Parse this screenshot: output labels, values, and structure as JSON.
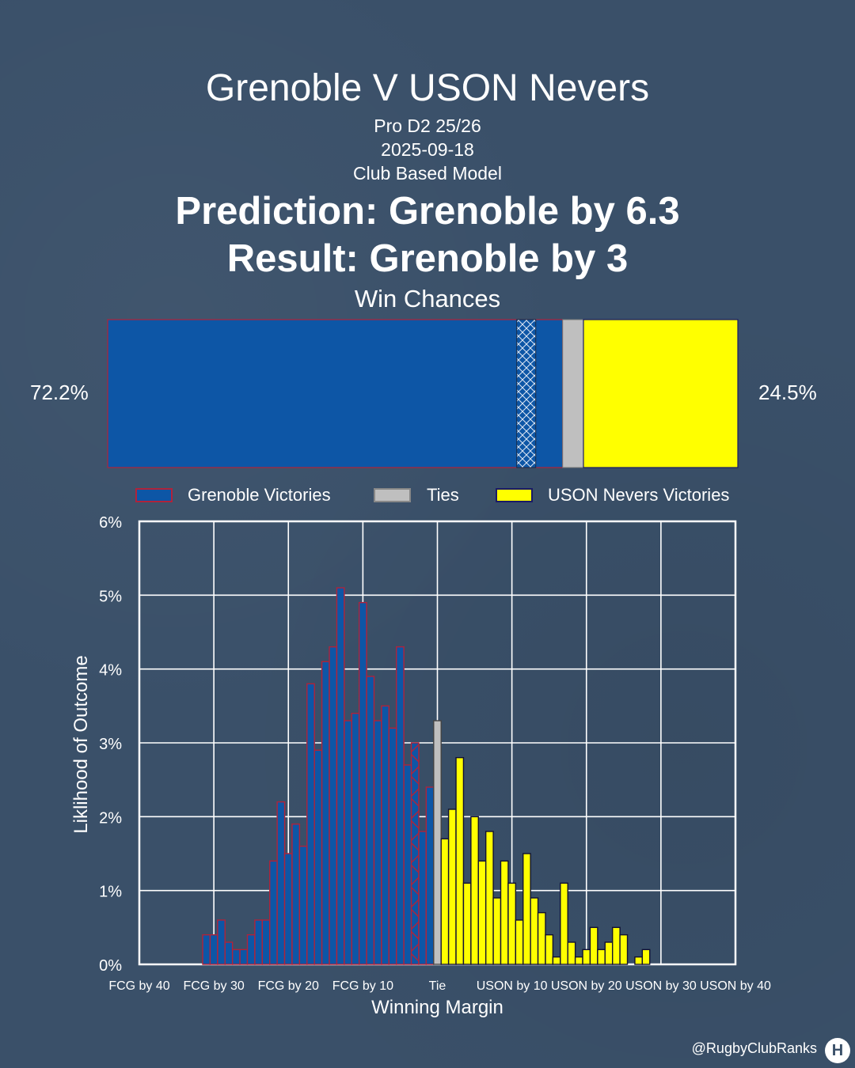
{
  "header": {
    "title": "Grenoble V USON Nevers",
    "competition": "Pro D2 25/26",
    "date": "2025-09-18",
    "model": "Club Based Model",
    "prediction": "Prediction: Grenoble by 6.3",
    "result": "Result: Grenoble by 3",
    "win_chances_label": "Win Chances"
  },
  "win_chances": {
    "home_pct_label": "72.2%",
    "away_pct_label": "24.5%",
    "home_share": 72.2,
    "tie_share": 3.3,
    "away_share": 24.5,
    "result_band_margin": 3,
    "colors": {
      "home": "#0d56a6",
      "home_edge": "#b0233a",
      "tie": "#bfbfbf",
      "away": "#ffff00",
      "away_edge": "#1a1a66"
    }
  },
  "legend": {
    "items": [
      {
        "label": "Grenoble Victories",
        "color": "#0d56a6",
        "edge": "#b0233a"
      },
      {
        "label": "Ties",
        "color": "#bfbfbf",
        "edge": "#888888"
      },
      {
        "label": "USON Nevers Victories",
        "color": "#ffff00",
        "edge": "#1a1a66"
      }
    ]
  },
  "chart_data": {
    "type": "bar",
    "xlabel": "Winning Margin",
    "ylabel": "Liklihood of Outcome",
    "ylim": [
      0,
      6
    ],
    "xlim": [
      -40,
      40
    ],
    "grid": true,
    "x_ticks": [
      {
        "value": -40,
        "label": "FCG by 40"
      },
      {
        "value": -30,
        "label": "FCG by 30"
      },
      {
        "value": -20,
        "label": "FCG by 20"
      },
      {
        "value": -10,
        "label": "FCG by 10"
      },
      {
        "value": 0,
        "label": "Tie"
      },
      {
        "value": 10,
        "label": "USON by 10"
      },
      {
        "value": 20,
        "label": "USON by 20"
      },
      {
        "value": 30,
        "label": "USON by 30"
      },
      {
        "value": 40,
        "label": "USON by 40"
      }
    ],
    "y_ticks": [
      "0%",
      "1%",
      "2%",
      "3%",
      "4%",
      "5%",
      "6%"
    ],
    "series": [
      {
        "name": "Grenoble Victories",
        "x": [
          -31,
          -30,
          -29,
          -28,
          -27,
          -26,
          -25,
          -24,
          -23,
          -22,
          -21,
          -20,
          -19,
          -18,
          -17,
          -16,
          -15,
          -14,
          -13,
          -12,
          -11,
          -10,
          -9,
          -8,
          -7,
          -6,
          -5,
          -4,
          -3,
          -2,
          -1
        ],
        "values": [
          0.4,
          0.4,
          0.6,
          0.3,
          0.2,
          0.2,
          0.4,
          0.6,
          0.6,
          1.4,
          2.2,
          1.5,
          1.9,
          1.6,
          3.8,
          2.9,
          4.1,
          4.3,
          5.1,
          3.3,
          3.4,
          4.9,
          3.9,
          3.3,
          3.5,
          3.2,
          4.3,
          2.7,
          3.0,
          1.8,
          2.4
        ]
      },
      {
        "name": "Ties",
        "x": [
          0
        ],
        "values": [
          3.3
        ]
      },
      {
        "name": "USON Nevers Victories",
        "x": [
          1,
          2,
          3,
          4,
          5,
          6,
          7,
          8,
          9,
          10,
          11,
          12,
          13,
          14,
          15,
          16,
          17,
          18,
          19,
          20,
          21,
          22,
          23,
          24,
          25,
          26,
          27,
          28
        ],
        "values": [
          1.7,
          2.1,
          2.8,
          1.1,
          2.0,
          1.4,
          1.8,
          0.9,
          1.4,
          1.1,
          0.6,
          1.5,
          0.9,
          0.7,
          0.4,
          0.1,
          1.1,
          0.3,
          0.1,
          0.2,
          0.5,
          0.2,
          0.3,
          0.5,
          0.4,
          0.0,
          0.1,
          0.2
        ]
      }
    ],
    "highlight_margin": -3
  },
  "footer": {
    "handle": "@RugbyClubRanks",
    "logo_glyph": "H"
  }
}
